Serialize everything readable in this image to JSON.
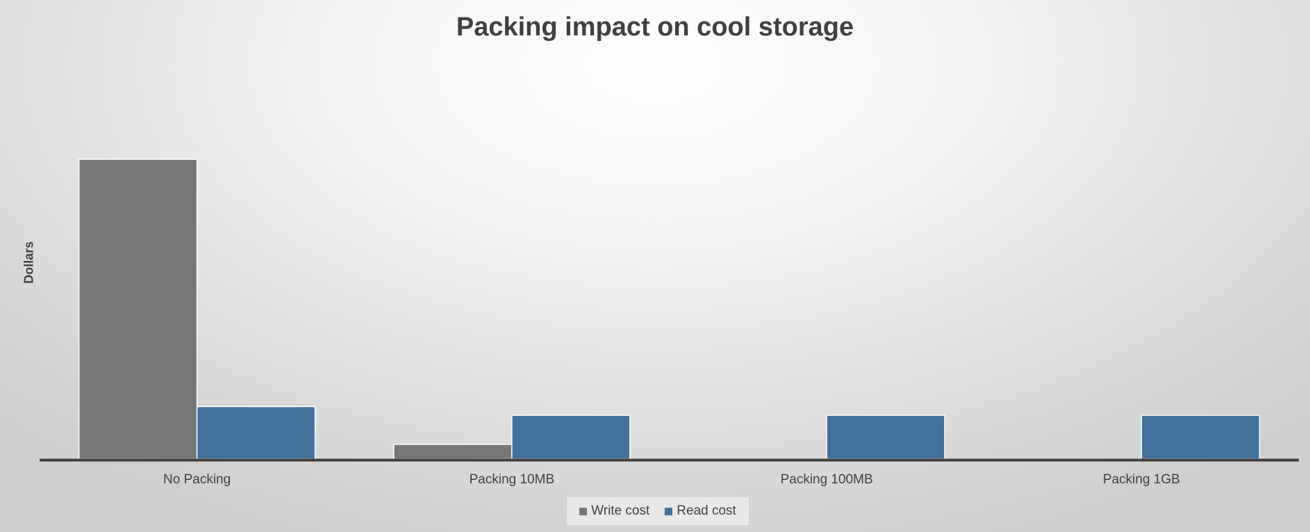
{
  "chart_data": {
    "type": "bar",
    "title": "Packing impact on cool storage",
    "xlabel": "",
    "ylabel": "Dollars",
    "categories": [
      "No Packing",
      "Packing 10MB",
      "Packing 100MB",
      "Packing 1GB"
    ],
    "series": [
      {
        "name": "Write cost",
        "color": "#767676",
        "values": [
          100,
          4.9,
          0,
          0
        ]
      },
      {
        "name": "Read cost",
        "color": "#41719c",
        "values": [
          17.5,
          14.6,
          14.6,
          14.6
        ]
      }
    ],
    "ylim": [
      0,
      120
    ],
    "grid": false,
    "legend_position": "bottom"
  }
}
